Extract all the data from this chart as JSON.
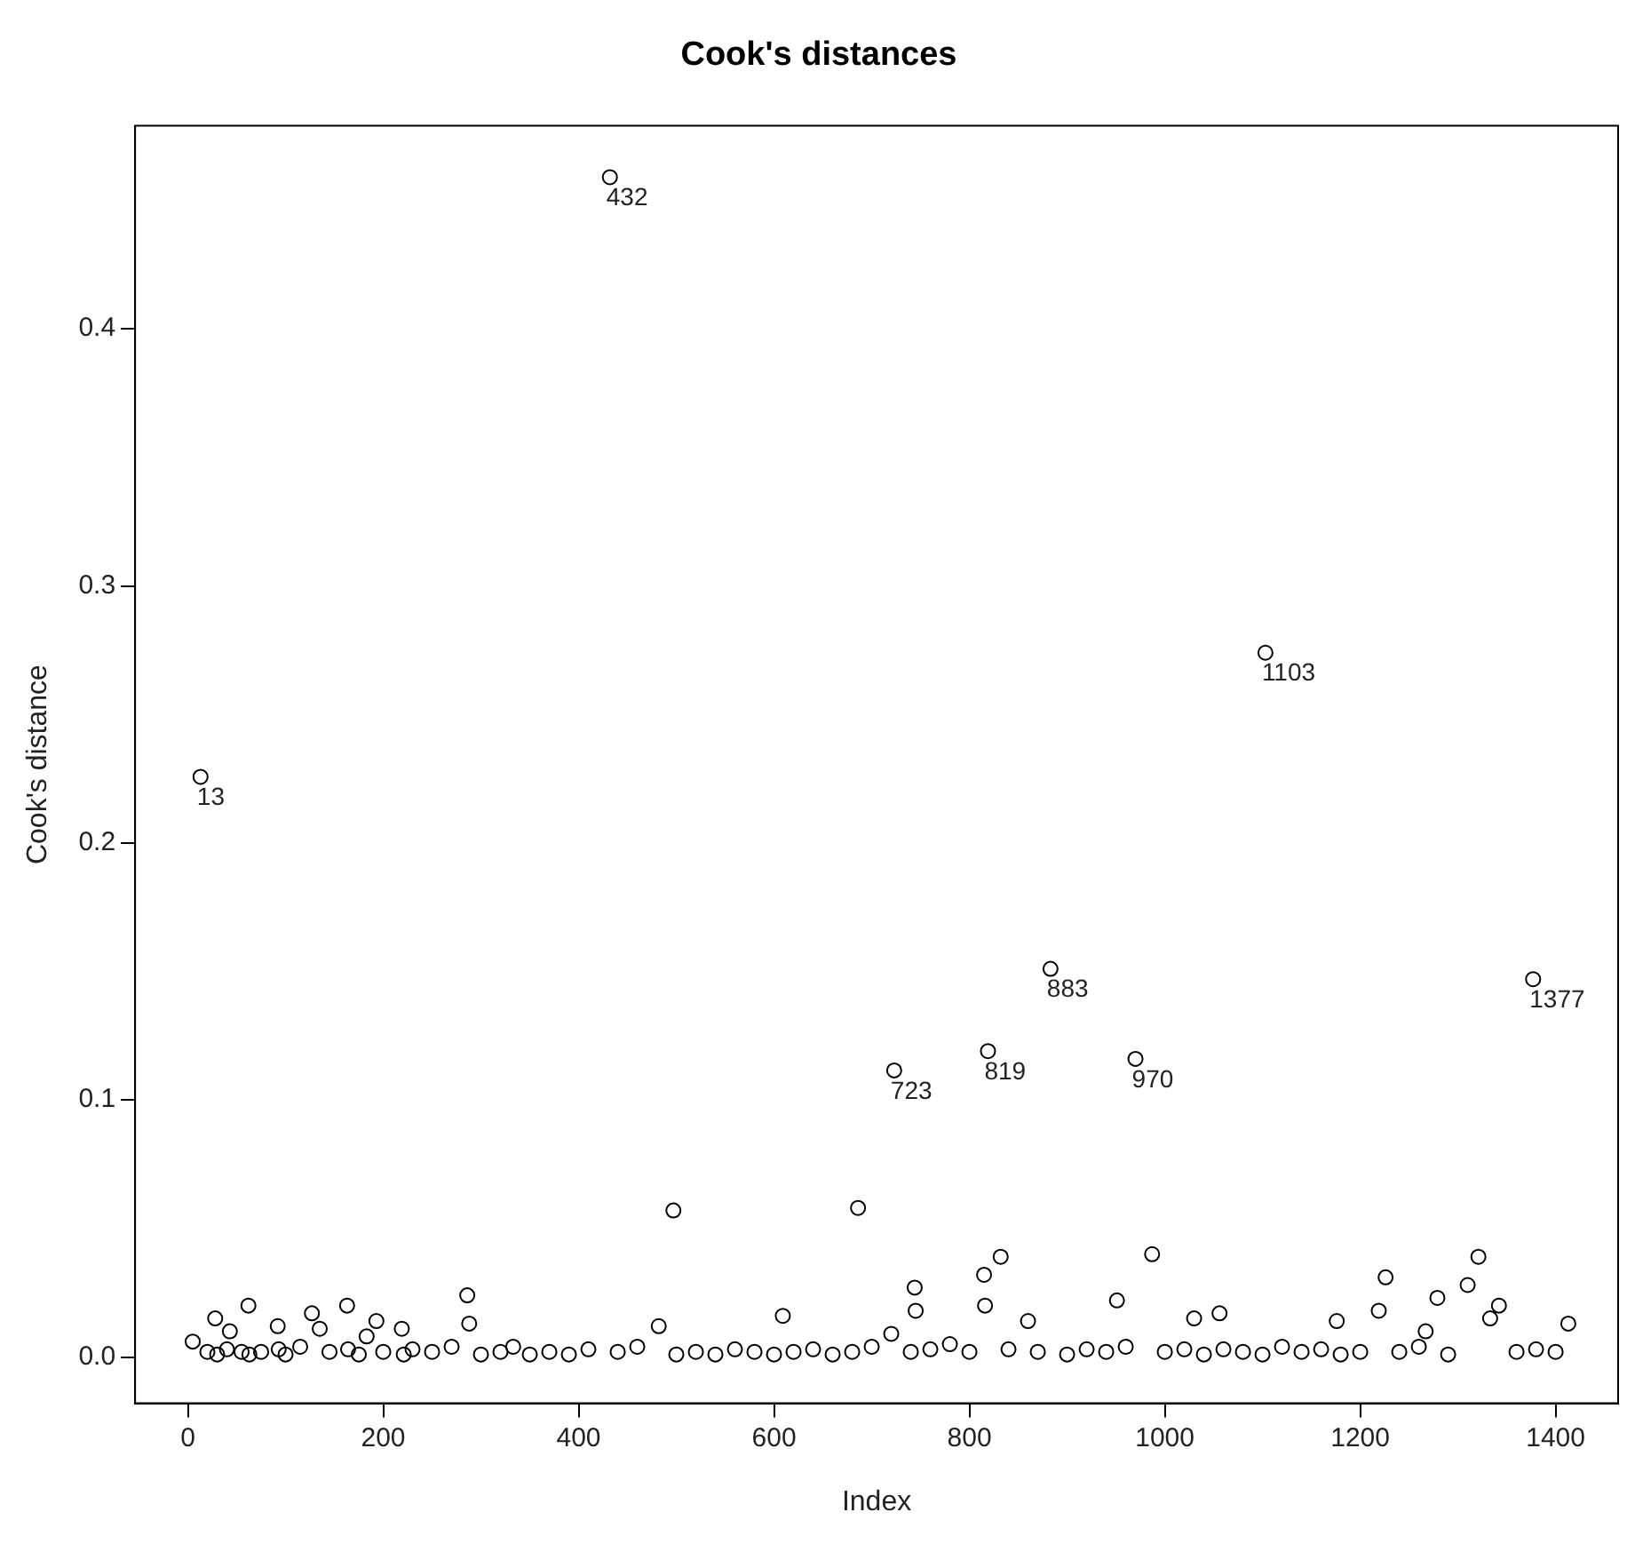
{
  "chart_data": {
    "type": "scatter",
    "title": "Cook's distances",
    "xlabel": "Index",
    "ylabel": "Cook's distance",
    "x": [
      5,
      13,
      20,
      28,
      30,
      40,
      43,
      55,
      62,
      63,
      75,
      92,
      93,
      100,
      115,
      127,
      135,
      145,
      163,
      164,
      175,
      183,
      193,
      200,
      219,
      221,
      230,
      250,
      270,
      286,
      288,
      300,
      320,
      333,
      350,
      370,
      390,
      410,
      432,
      440,
      460,
      482,
      497,
      500,
      520,
      540,
      560,
      580,
      600,
      609,
      620,
      640,
      660,
      680,
      686,
      700,
      720,
      723,
      740,
      744,
      745,
      760,
      780,
      800,
      815,
      816,
      819,
      832,
      840,
      860,
      870,
      883,
      900,
      920,
      940,
      951,
      960,
      970,
      987,
      1000,
      1020,
      1030,
      1040,
      1056,
      1060,
      1080,
      1100,
      1103,
      1120,
      1140,
      1160,
      1176,
      1180,
      1200,
      1219,
      1226,
      1240,
      1260,
      1267,
      1279,
      1290,
      1310,
      1321,
      1333,
      1342,
      1360,
      1377,
      1380,
      1400,
      1413
    ],
    "values": [
      0.006,
      0.2257,
      0.002,
      0.015,
      0.001,
      0.003,
      0.01,
      0.002,
      0.02,
      0.001,
      0.002,
      0.012,
      0.003,
      0.001,
      0.004,
      0.017,
      0.011,
      0.002,
      0.02,
      0.003,
      0.001,
      0.008,
      0.014,
      0.002,
      0.011,
      0.001,
      0.003,
      0.002,
      0.004,
      0.024,
      0.013,
      0.001,
      0.002,
      0.004,
      0.001,
      0.002,
      0.001,
      0.003,
      0.459,
      0.002,
      0.004,
      0.012,
      0.057,
      0.001,
      0.002,
      0.001,
      0.003,
      0.002,
      0.001,
      0.016,
      0.002,
      0.003,
      0.001,
      0.002,
      0.058,
      0.004,
      0.009,
      0.1115,
      0.002,
      0.027,
      0.018,
      0.003,
      0.005,
      0.002,
      0.032,
      0.02,
      0.119,
      0.039,
      0.003,
      0.014,
      0.002,
      0.151,
      0.001,
      0.003,
      0.002,
      0.022,
      0.004,
      0.116,
      0.04,
      0.002,
      0.003,
      0.015,
      0.001,
      0.017,
      0.003,
      0.002,
      0.001,
      0.274,
      0.004,
      0.002,
      0.003,
      0.014,
      0.001,
      0.002,
      0.018,
      0.031,
      0.002,
      0.004,
      0.01,
      0.023,
      0.001,
      0.028,
      0.039,
      0.015,
      0.02,
      0.002,
      0.147,
      0.003,
      0.002,
      0.013
    ],
    "color": "#000000",
    "marker": "circle",
    "xlim": [
      -54,
      1464
    ],
    "ylim": [
      -0.018,
      0.479
    ],
    "xticks": [
      0,
      200,
      400,
      600,
      800,
      1000,
      1200,
      1400
    ],
    "yticks": [
      {
        "value": 0,
        "label": "0.0"
      },
      0.1,
      0.2,
      0.3,
      0.4
    ],
    "grid": false,
    "legend": false,
    "annotations": [
      {
        "text": "13",
        "x": 13,
        "y": 0.2257
      },
      {
        "text": "432",
        "x": 432,
        "y": 0.459
      },
      {
        "text": "723",
        "x": 723,
        "y": 0.1115
      },
      {
        "text": "819",
        "x": 819,
        "y": 0.119
      },
      {
        "text": "883",
        "x": 883,
        "y": 0.151
      },
      {
        "text": "970",
        "x": 970,
        "y": 0.116
      },
      {
        "text": "1103",
        "x": 1103,
        "y": 0.274
      },
      {
        "text": "1377",
        "x": 1377,
        "y": 0.147
      }
    ]
  }
}
